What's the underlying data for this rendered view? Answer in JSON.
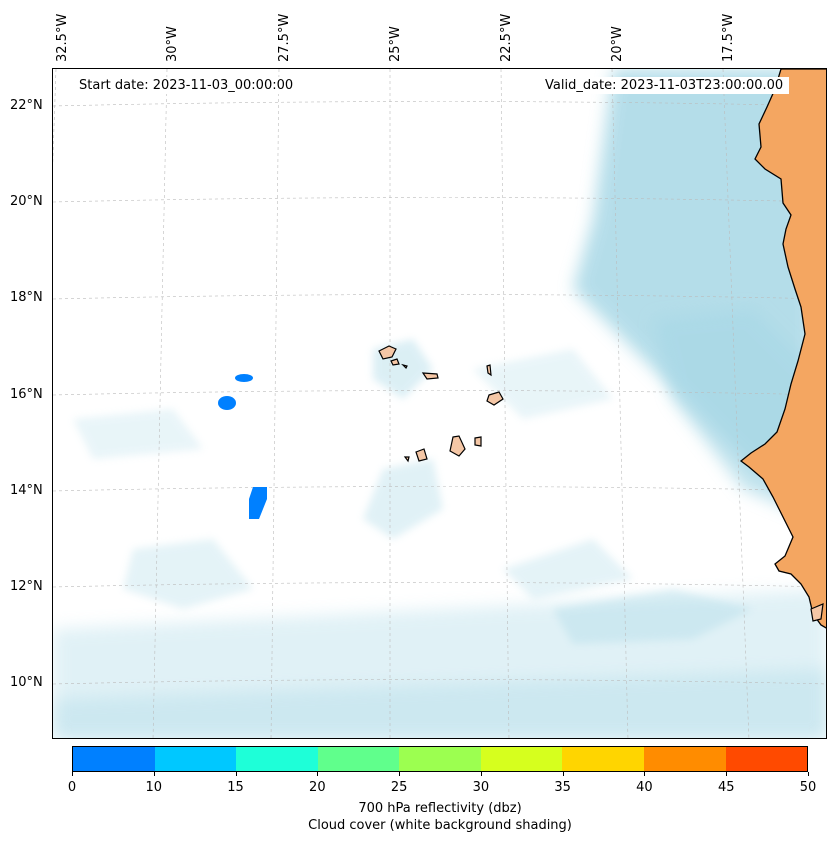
{
  "map": {
    "start_label": "Start date: 2023-11-03_00:00:00",
    "valid_label": "Valid_date: 2023-11-03T23:00:00.00",
    "lon_labels": [
      "32.5°W",
      "30°W",
      "27.5°W",
      "25°W",
      "22.5°W",
      "20°W",
      "17.5°W"
    ],
    "lat_labels": [
      "22°N",
      "20°N",
      "18°N",
      "16°N",
      "14°N",
      "12°N",
      "10°N"
    ],
    "land_color": "#f4a661",
    "cloud_color": "#a8d8e6",
    "coastline_color": "#000000"
  },
  "colorbar": {
    "ticks": [
      "0",
      "10",
      "15",
      "20",
      "25",
      "30",
      "35",
      "40",
      "45",
      "50"
    ],
    "colors": [
      "#0080ff",
      "#00c8ff",
      "#1effd8",
      "#60ff8c",
      "#9cff50",
      "#d6ff1e",
      "#ffd500",
      "#ff8c00",
      "#ff4a00"
    ],
    "label_line1": "700 hPa reflectivity (dbz)",
    "label_line2": "Cloud cover (white background shading)"
  }
}
